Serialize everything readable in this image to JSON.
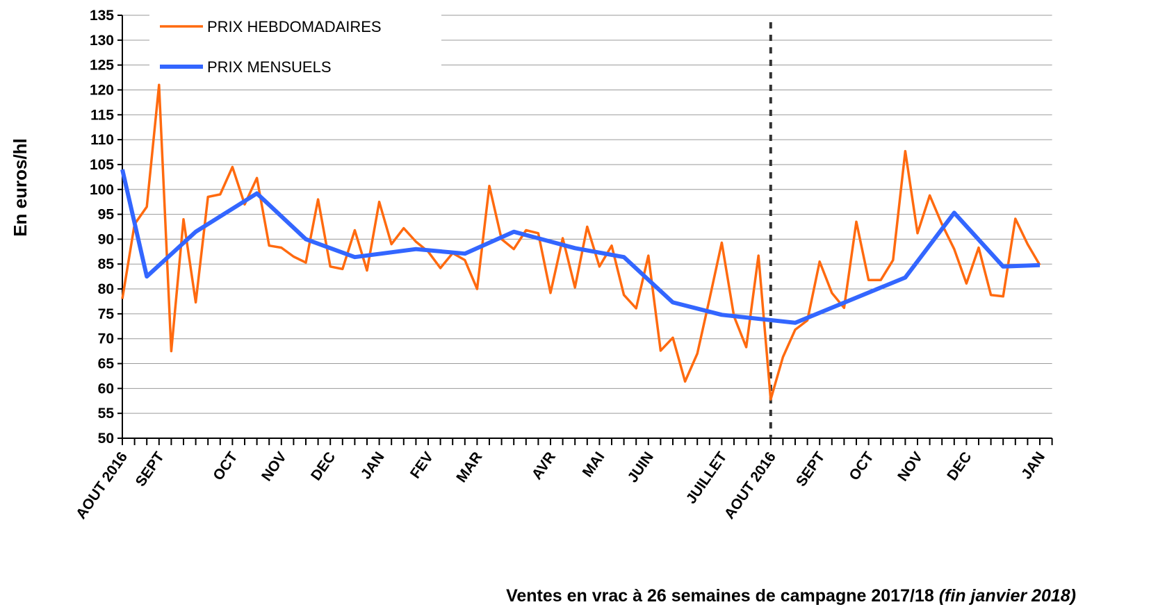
{
  "chart_data": {
    "type": "line",
    "ylabel": "En euros/hl",
    "xlabel": "Ventes en vrac à 26 semaines de campagne 2017/18",
    "xlabel_note": "(fin janvier 2018)",
    "categories": [
      "AOUT 2016",
      null,
      null,
      "SEPT",
      null,
      null,
      null,
      null,
      null,
      "OCT",
      null,
      null,
      null,
      "NOV",
      null,
      null,
      null,
      "DEC",
      null,
      null,
      null,
      "JAN",
      null,
      null,
      null,
      "FEV",
      null,
      null,
      null,
      "MAR",
      null,
      null,
      null,
      null,
      null,
      "AVR",
      null,
      null,
      null,
      "MAI",
      null,
      null,
      null,
      "JUIN",
      null,
      null,
      null,
      null,
      null,
      "JUILLET",
      null,
      null,
      null,
      "AOUT 2016",
      null,
      null,
      null,
      "SEPT",
      null,
      null,
      null,
      "OCT",
      null,
      null,
      null,
      "NOV",
      null,
      null,
      null,
      "DEC",
      null,
      null,
      null,
      null,
      null,
      "JAN"
    ],
    "series": [
      {
        "name": "PRIX HEBDOMADAIRES",
        "color": "#ff6a0f",
        "values": [
          78,
          93,
          96.5,
          121,
          67.5,
          94,
          77.3,
          98.5,
          99,
          104.5,
          97,
          102.3,
          88.7,
          88.3,
          86.5,
          85.3,
          98,
          84.5,
          84,
          91.8,
          83.7,
          97.5,
          89,
          92.2,
          89.5,
          87.5,
          84.2,
          87.2,
          85.8,
          80,
          100.7,
          90,
          88,
          91.8,
          91.2,
          79.2,
          90.2,
          80.3,
          92.5,
          84.5,
          88.7,
          78.8,
          76.1,
          86.7,
          67.6,
          70.2,
          61.4,
          67,
          78,
          89.3,
          74.5,
          68.3,
          86.7,
          57.8,
          66.3,
          71.8,
          73.7,
          85.5,
          79.2,
          76.2,
          93.5,
          81.8,
          81.8,
          85.8,
          107.7,
          91.2,
          98.8,
          93,
          88,
          81.1,
          88.3,
          78.8,
          78.5,
          94.1,
          89,
          84.8
        ]
      },
      {
        "name": "PRIX MENSUELS",
        "color": "#3366ff",
        "x": [
          0,
          2,
          6,
          11,
          15,
          19,
          24,
          28,
          32,
          37,
          41,
          45,
          49,
          55,
          64,
          68,
          72,
          75
        ],
        "values": [
          104,
          82.5,
          91.5,
          99.2,
          90,
          86.4,
          88,
          87.1,
          91.5,
          88.2,
          86.4,
          77.3,
          74.8,
          73.2,
          82.3,
          95.3,
          84.5,
          84.8
        ]
      }
    ],
    "ylim": [
      50,
      135
    ],
    "yticks": [
      50,
      55,
      60,
      65,
      70,
      75,
      80,
      85,
      90,
      95,
      100,
      105,
      110,
      115,
      120,
      125,
      130,
      135
    ],
    "grid": true,
    "legend": "upper left"
  }
}
